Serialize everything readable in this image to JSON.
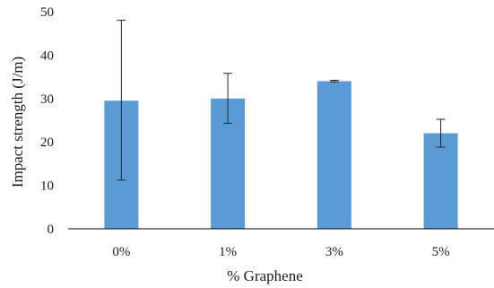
{
  "chart_data": {
    "type": "bar",
    "categories": [
      "0%",
      "1%",
      "3%",
      "5%"
    ],
    "values": [
      29.5,
      30.0,
      34.0,
      22.0
    ],
    "error_low": [
      11.2,
      24.3,
      33.8,
      18.8
    ],
    "error_high": [
      48.0,
      35.8,
      34.2,
      25.2
    ],
    "xlabel": "% Graphene",
    "ylabel": "Impact strength (J/m)",
    "ylim": [
      0,
      50
    ],
    "yticks": [
      0,
      10,
      20,
      30,
      40,
      50
    ],
    "grid": false,
    "bar_color": "#5b9bd5"
  }
}
